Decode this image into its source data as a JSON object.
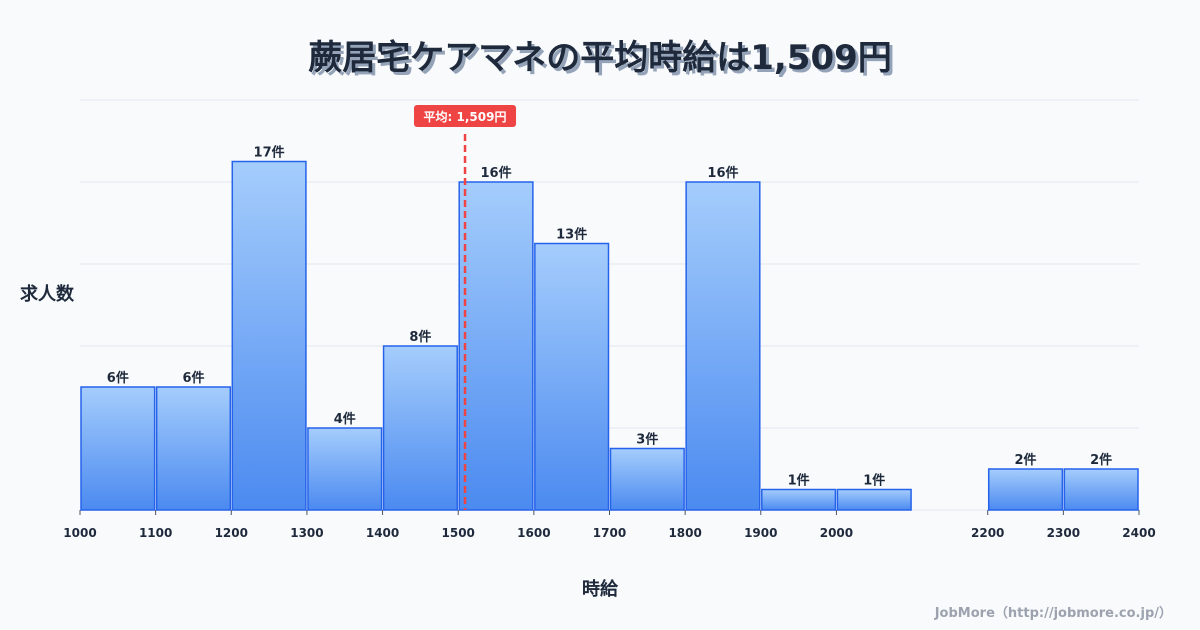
{
  "chart_data": {
    "type": "bar",
    "title": "蕨居宅ケアマネの平均時給は1,509円",
    "xlabel": "時給",
    "ylabel": "求人数",
    "bin_starts": [
      1000,
      1100,
      1200,
      1300,
      1400,
      1500,
      1600,
      1700,
      1800,
      1900,
      2000,
      2100,
      2200,
      2300
    ],
    "bin_width": 100,
    "values": [
      6,
      6,
      17,
      4,
      8,
      16,
      13,
      3,
      16,
      1,
      1,
      0,
      2,
      2
    ],
    "data_labels": [
      "6件",
      "6件",
      "17件",
      "4件",
      "8件",
      "16件",
      "13件",
      "3件",
      "16件",
      "1件",
      "1件",
      "",
      "2件",
      "2件"
    ],
    "x_ticks": [
      1000,
      1100,
      1200,
      1300,
      1400,
      1500,
      1600,
      1700,
      1800,
      1900,
      2000,
      2200,
      2300,
      2400
    ],
    "x_tick_labels": [
      "1000",
      "1100",
      "1200",
      "1300",
      "1400",
      "1500",
      "1600",
      "1700",
      "1800",
      "1900",
      "2000",
      "2200",
      "2300",
      "2400"
    ],
    "xlim": [
      1000,
      2400
    ],
    "ylim": [
      0,
      20
    ],
    "y_gridlines": [
      0,
      4,
      8,
      12,
      16,
      20
    ],
    "grid": true,
    "average": 1509,
    "average_label": "平均: 1,509円",
    "colors": {
      "bar_top": "#a5cdfc",
      "bar_bottom": "#4b8af0",
      "bar_stroke": "#2563eb",
      "average": "#ef4444",
      "grid": "#e2e8f0"
    }
  },
  "credit": "JobMore（http://jobmore.co.jp/）"
}
